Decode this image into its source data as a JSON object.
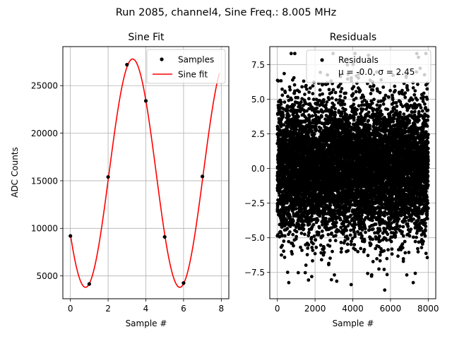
{
  "figure_title": "Run 2085, channel4, Sine Freq.: 8.005 MHz",
  "chart_data": [
    {
      "type": "line",
      "title": "Sine Fit",
      "xlabel": "Sample #",
      "ylabel": "ADC Counts",
      "xlim": [
        -0.4,
        8.4
      ],
      "ylim": [
        2600,
        29100
      ],
      "xticks": [
        0,
        2,
        4,
        6,
        8
      ],
      "xtick_labels": [
        "0",
        "2",
        "4",
        "6",
        "8"
      ],
      "yticks": [
        5000,
        10000,
        15000,
        20000,
        25000
      ],
      "ytick_labels": [
        "5000",
        "10000",
        "15000",
        "20000",
        "25000"
      ],
      "grid": true,
      "legend_position": "top-right",
      "series": [
        {
          "name": "Samples",
          "kind": "scatter",
          "color": "#000000",
          "x": [
            0,
            1,
            2,
            3,
            4,
            5,
            6,
            7
          ],
          "y": [
            9200,
            4150,
            15400,
            27200,
            23400,
            9100,
            4250,
            15450
          ]
        },
        {
          "name": "Sine fit",
          "kind": "line",
          "color": "#ff0000",
          "function": "sine",
          "amplitude": 12000,
          "offset": 15800,
          "period": 5.0,
          "peak_at_x": 3.3,
          "x_range": [
            0,
            7.9
          ]
        }
      ]
    },
    {
      "type": "scatter",
      "title": "Residuals",
      "xlabel": "Sample #",
      "ylabel": "",
      "xlim": [
        -400,
        8400
      ],
      "ylim": [
        -9.4,
        8.8
      ],
      "xticks": [
        0,
        2000,
        4000,
        6000,
        8000
      ],
      "xtick_labels": [
        "0",
        "2000",
        "4000",
        "6000",
        "8000"
      ],
      "yticks": [
        -7.5,
        -5.0,
        -2.5,
        0.0,
        2.5,
        5.0,
        7.5
      ],
      "ytick_labels": [
        "−7.5",
        "−5.0",
        "−2.5",
        "0.0",
        "2.5",
        "5.0",
        "7.5"
      ],
      "grid": true,
      "legend_position": "top-right",
      "series": [
        {
          "name": "Residuals",
          "kind": "scatter",
          "color": "#000000",
          "n_points": 8000,
          "x_range": [
            0,
            8000
          ],
          "mean": 0.0,
          "sigma": 2.45
        }
      ],
      "legend_label_line1": "Residuals",
      "legend_label_line2": "μ = -0.0, σ = 2.45"
    }
  ]
}
